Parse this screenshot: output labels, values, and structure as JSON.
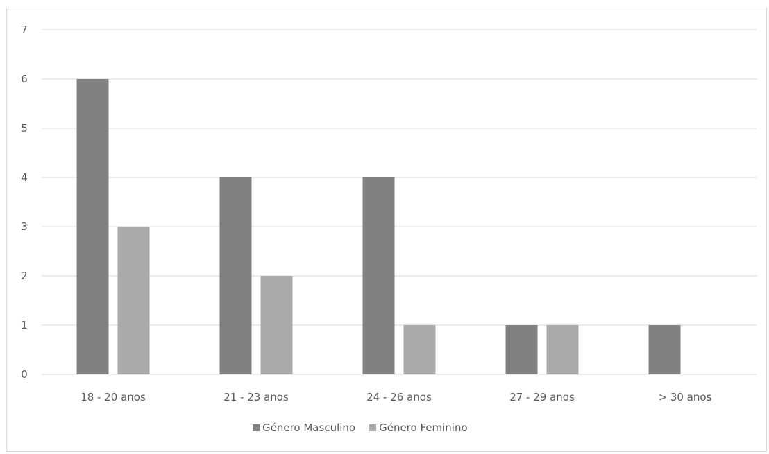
{
  "chart_data": {
    "type": "bar",
    "title": "",
    "xlabel": "",
    "ylabel": "",
    "categories": [
      "18 - 20 anos",
      "21 - 23 anos",
      "24 - 26 anos",
      "27 - 29 anos",
      "> 30 anos"
    ],
    "series": [
      {
        "name": "Género Masculino",
        "values": [
          6,
          4,
          4,
          1,
          1
        ],
        "color": "#808080"
      },
      {
        "name": "Género Feminino",
        "values": [
          3,
          2,
          1,
          1,
          0
        ],
        "color": "#a9a9a9"
      }
    ],
    "ylim": [
      0,
      7
    ],
    "yticks": [
      0,
      1,
      2,
      3,
      4,
      5,
      6,
      7
    ],
    "grid": true,
    "legend": "bottom-center"
  },
  "colors": {
    "gridline": "#d9d9d9",
    "axis": "#d9d9d9",
    "text": "#595959"
  }
}
